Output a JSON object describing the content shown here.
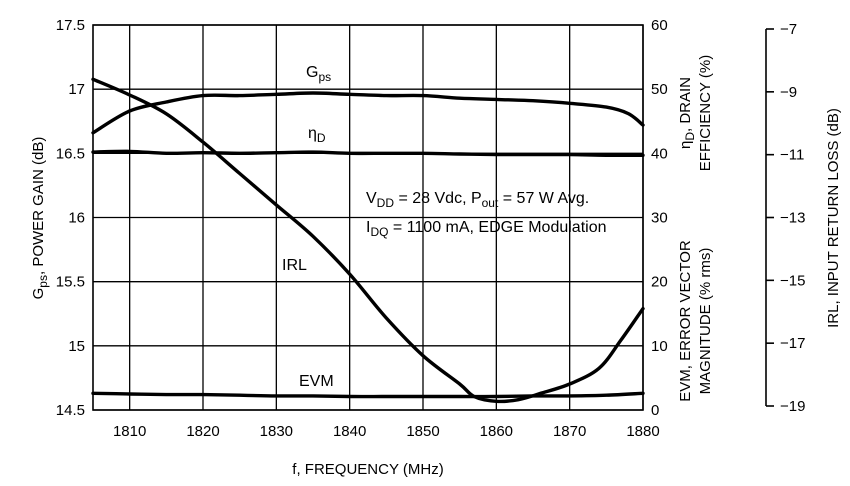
{
  "chart_data": {
    "type": "line",
    "x_axis": {
      "label": "f, FREQUENCY (MHz)",
      "range": [
        1805,
        1880
      ],
      "ticks": [
        1810,
        1820,
        1830,
        1840,
        1850,
        1860,
        1870,
        1880
      ],
      "tick_labels": [
        "1810",
        "1820",
        "1830",
        "1840",
        "1850",
        "1860",
        "1870",
        "1880"
      ],
      "grid": true
    },
    "y_left": {
      "label_main": "G",
      "label_sub": "ps",
      "label_rest": ", POWER GAIN (dB)",
      "range": [
        14.5,
        17.5
      ],
      "ticks": [
        14.5,
        15,
        15.5,
        16,
        16.5,
        17,
        17.5
      ],
      "tick_labels": [
        "14.5",
        "15",
        "15.5",
        "16",
        "16.5",
        "17",
        "17.5"
      ],
      "grid": true
    },
    "y_right1": {
      "label_top_main": "η",
      "label_top_sub": "D",
      "label_top_rest": ", DRAIN",
      "label_top_line2": "EFFICIENCY (%)",
      "label_bottom_line1": "EVM, ERROR VECTOR",
      "label_bottom_line2": "MAGNITUDE (% rms)",
      "range": [
        0,
        60
      ],
      "ticks": [
        0,
        10,
        20,
        30,
        40,
        50,
        60
      ],
      "tick_labels": [
        "0",
        "10",
        "20",
        "30",
        "40",
        "50",
        "60"
      ]
    },
    "y_right2": {
      "label": "IRL, INPUT RETURN LOSS (dB)",
      "range": [
        -19,
        -7
      ],
      "ticks": [
        -19,
        -17,
        -15,
        -13,
        -11,
        -9,
        -7
      ],
      "tick_labels": [
        "−19",
        "−17",
        "−15",
        "−13",
        "−11",
        "−9",
        "−7"
      ]
    },
    "annotation": {
      "line1_a": "V",
      "line1_a_sub": "DD",
      "line1_b": " = 28 Vdc, P",
      "line1_b_sub": "out",
      "line1_c": " = 57 W Avg.",
      "line2_a": "I",
      "line2_a_sub": "DQ",
      "line2_b": " = 1100 mA, EDGE Modulation"
    },
    "series": [
      {
        "name_main": "G",
        "name_sub": "ps",
        "axis": "y_left",
        "x": [
          1805,
          1810,
          1815,
          1820,
          1825,
          1830,
          1835,
          1840,
          1845,
          1850,
          1855,
          1860,
          1865,
          1870,
          1875,
          1878,
          1880
        ],
        "y": [
          16.66,
          16.83,
          16.9,
          16.95,
          16.95,
          16.96,
          16.97,
          16.96,
          16.95,
          16.95,
          16.93,
          16.92,
          16.91,
          16.89,
          16.86,
          16.81,
          16.72
        ]
      },
      {
        "name_main": "η",
        "name_sub": "D",
        "axis": "y_right1",
        "x": [
          1805,
          1810,
          1815,
          1820,
          1825,
          1830,
          1835,
          1840,
          1845,
          1850,
          1855,
          1860,
          1865,
          1870,
          1875,
          1880
        ],
        "y": [
          40.2,
          40.3,
          40.0,
          40.1,
          40.0,
          40.1,
          40.2,
          40.0,
          40.0,
          40.0,
          39.9,
          39.8,
          39.8,
          39.8,
          39.7,
          39.7
        ]
      },
      {
        "name_main": "IRL",
        "name_sub": "",
        "axis": "y_right2",
        "x": [
          1805,
          1810,
          1815,
          1820,
          1825,
          1830,
          1835,
          1840,
          1845,
          1850,
          1855,
          1857,
          1860,
          1863,
          1866,
          1870,
          1874,
          1877,
          1880
        ],
        "y": [
          -8.6,
          -9.1,
          -9.7,
          -10.6,
          -11.6,
          -12.6,
          -13.6,
          -14.8,
          -16.2,
          -17.4,
          -18.3,
          -18.7,
          -18.85,
          -18.8,
          -18.6,
          -18.3,
          -17.8,
          -16.9,
          -15.9
        ]
      },
      {
        "name_main": "EVM",
        "name_sub": "",
        "axis": "y_right1",
        "x": [
          1805,
          1810,
          1815,
          1820,
          1825,
          1830,
          1835,
          1840,
          1845,
          1850,
          1855,
          1860,
          1865,
          1870,
          1875,
          1880
        ],
        "y": [
          2.6,
          2.5,
          2.4,
          2.4,
          2.3,
          2.2,
          2.2,
          2.1,
          2.1,
          2.1,
          2.1,
          2.1,
          2.2,
          2.2,
          2.3,
          2.6
        ]
      }
    ]
  }
}
